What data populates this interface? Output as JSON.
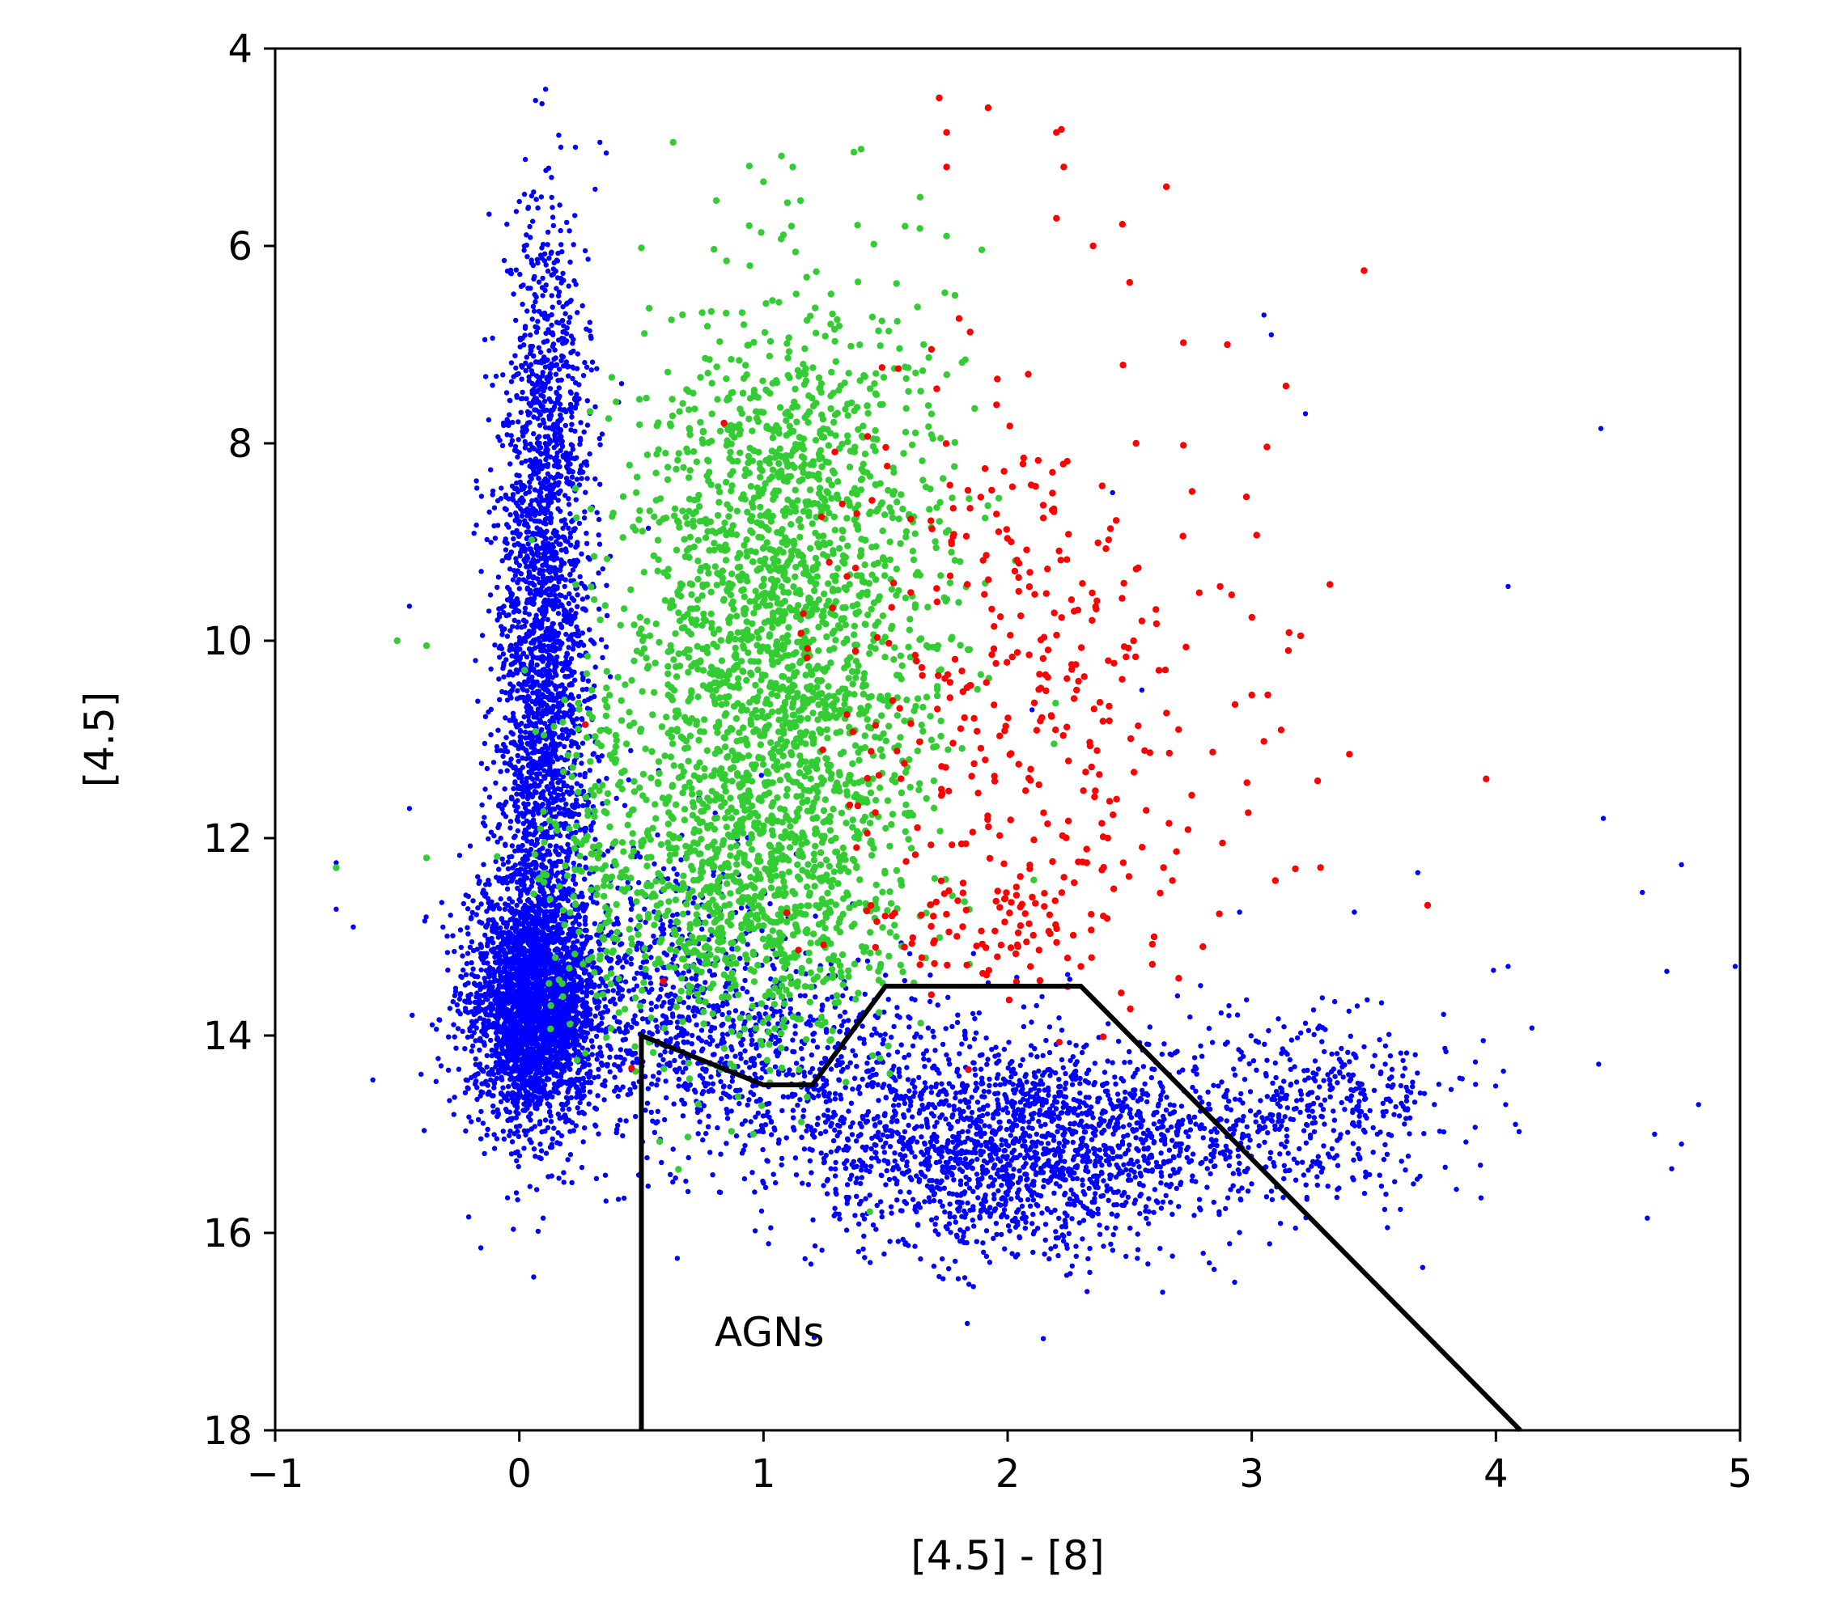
{
  "chart_data": {
    "type": "scatter",
    "title": "",
    "xlabel": "[4.5] - [8]",
    "ylabel": "[4.5]",
    "xlim": [
      -1,
      5
    ],
    "ylim": [
      18,
      4
    ],
    "y_inverted": true,
    "xticks": [
      -1,
      0,
      1,
      2,
      3,
      4,
      5
    ],
    "xtick_labels": [
      "−1",
      "0",
      "1",
      "2",
      "3",
      "4",
      "5"
    ],
    "yticks": [
      4,
      6,
      8,
      10,
      12,
      14,
      16,
      18
    ],
    "ytick_labels": [
      "4",
      "6",
      "8",
      "10",
      "12",
      "14",
      "16",
      "18"
    ],
    "grid": false,
    "legend": "none",
    "series": [
      {
        "color": "#0000ff",
        "clusters": [
          {
            "cx": 0.05,
            "cy": 13.7,
            "sx": 0.13,
            "sy": 0.6,
            "n": 2600
          },
          {
            "cx": 0.1,
            "cy": 10.5,
            "sx": 0.1,
            "sy": 1.8,
            "n": 2200
          },
          {
            "cx": 0.12,
            "cy": 7.5,
            "sx": 0.08,
            "sy": 1.0,
            "n": 400
          },
          {
            "cx": 0.55,
            "cy": 13.6,
            "sx": 0.3,
            "sy": 0.8,
            "n": 700
          },
          {
            "cx": 1.05,
            "cy": 14.3,
            "sx": 0.35,
            "sy": 0.5,
            "n": 500
          },
          {
            "cx": 2.0,
            "cy": 15.1,
            "sx": 0.4,
            "sy": 0.55,
            "n": 1800
          },
          {
            "cx": 3.35,
            "cy": 14.7,
            "sx": 0.25,
            "sy": 0.45,
            "n": 350
          },
          {
            "cx": 2.8,
            "cy": 15.0,
            "sx": 0.25,
            "sy": 0.5,
            "n": 250
          }
        ],
        "points": [
          {
            "x": 0.0,
            "y": 5.55
          },
          {
            "x": 0.17,
            "y": 5.0
          },
          {
            "x": 0.23,
            "y": 5.0
          },
          {
            "x": 0.33,
            "y": 4.95
          },
          {
            "x": 3.05,
            "y": 6.7
          },
          {
            "x": 3.08,
            "y": 6.9
          },
          {
            "x": 3.22,
            "y": 7.7
          },
          {
            "x": 4.43,
            "y": 7.85
          },
          {
            "x": 2.43,
            "y": 8.5
          },
          {
            "x": 4.05,
            "y": 9.45
          },
          {
            "x": 4.44,
            "y": 11.8
          },
          {
            "x": -0.75,
            "y": 12.25
          },
          {
            "x": -0.75,
            "y": 12.72
          },
          {
            "x": -0.68,
            "y": 12.9
          },
          {
            "x": -0.6,
            "y": 14.45
          },
          {
            "x": 3.68,
            "y": 12.35
          },
          {
            "x": 4.76,
            "y": 12.27
          },
          {
            "x": 4.6,
            "y": 12.55
          },
          {
            "x": 3.42,
            "y": 12.75
          },
          {
            "x": 2.95,
            "y": 12.75
          },
          {
            "x": 4.05,
            "y": 13.3
          },
          {
            "x": 4.7,
            "y": 13.35
          },
          {
            "x": 4.98,
            "y": 13.3
          },
          {
            "x": 4.04,
            "y": 14.7
          },
          {
            "x": 4.08,
            "y": 14.9
          },
          {
            "x": 4.83,
            "y": 14.7
          },
          {
            "x": 4.65,
            "y": 15.0
          },
          {
            "x": 4.76,
            "y": 15.1
          },
          {
            "x": 4.72,
            "y": 15.35
          },
          {
            "x": 4.62,
            "y": 15.85
          },
          {
            "x": 3.7,
            "y": 16.35
          },
          {
            "x": 2.93,
            "y": 16.5
          },
          {
            "x": 2.55,
            "y": 10.5
          },
          {
            "x": 2.1,
            "y": 10.7
          },
          {
            "x": -0.45,
            "y": 9.65
          },
          {
            "x": -0.45,
            "y": 11.7
          }
        ]
      },
      {
        "color": "#33cc33",
        "clusters": [
          {
            "cx": 1.05,
            "cy": 10.5,
            "sx": 0.32,
            "sy": 1.6,
            "n": 2000
          },
          {
            "cx": 1.2,
            "cy": 8.3,
            "sx": 0.3,
            "sy": 1.0,
            "n": 400
          },
          {
            "cx": 0.9,
            "cy": 12.8,
            "sx": 0.3,
            "sy": 0.6,
            "n": 450
          },
          {
            "cx": 0.35,
            "cy": 12.0,
            "sx": 0.15,
            "sy": 1.0,
            "n": 150
          }
        ],
        "points": [
          {
            "x": 0.63,
            "y": 4.95
          },
          {
            "x": 1.37,
            "y": 5.05
          },
          {
            "x": 1.4,
            "y": 5.02
          },
          {
            "x": 1.12,
            "y": 5.2
          },
          {
            "x": 1.0,
            "y": 5.35
          },
          {
            "x": 0.5,
            "y": 6.02
          },
          {
            "x": -0.5,
            "y": 10.0
          },
          {
            "x": -0.38,
            "y": 10.05
          },
          {
            "x": -0.75,
            "y": 12.3
          },
          {
            "x": -0.38,
            "y": 12.2
          },
          {
            "x": 1.75,
            "y": 5.9
          },
          {
            "x": 1.58,
            "y": 5.8
          }
        ]
      },
      {
        "color": "#ff0000",
        "clusters": [
          {
            "cx": 2.0,
            "cy": 10.2,
            "sx": 0.35,
            "sy": 1.6,
            "n": 320
          },
          {
            "cx": 1.9,
            "cy": 12.9,
            "sx": 0.25,
            "sy": 0.35,
            "n": 70
          },
          {
            "cx": 2.6,
            "cy": 12.0,
            "sx": 0.4,
            "sy": 1.2,
            "n": 40
          }
        ],
        "points": [
          {
            "x": 1.72,
            "y": 4.5
          },
          {
            "x": 1.92,
            "y": 4.6
          },
          {
            "x": 1.75,
            "y": 4.85
          },
          {
            "x": 2.2,
            "y": 4.85
          },
          {
            "x": 2.22,
            "y": 4.82
          },
          {
            "x": 1.75,
            "y": 5.2
          },
          {
            "x": 2.23,
            "y": 5.2
          },
          {
            "x": 2.65,
            "y": 5.4
          },
          {
            "x": 2.2,
            "y": 5.72
          },
          {
            "x": 2.47,
            "y": 5.78
          },
          {
            "x": 3.46,
            "y": 6.25
          },
          {
            "x": 2.5,
            "y": 6.37
          },
          {
            "x": 2.72,
            "y": 6.98
          },
          {
            "x": 2.9,
            "y": 7.0
          },
          {
            "x": 3.14,
            "y": 7.42
          },
          {
            "x": 2.72,
            "y": 8.02
          },
          {
            "x": 2.35,
            "y": 6.0
          },
          {
            "x": 3.02,
            "y": 8.93
          },
          {
            "x": 3.32,
            "y": 9.43
          },
          {
            "x": 2.87,
            "y": 9.45
          },
          {
            "x": 3.2,
            "y": 9.95
          },
          {
            "x": 3.15,
            "y": 10.1
          },
          {
            "x": 3.0,
            "y": 10.55
          },
          {
            "x": 3.05,
            "y": 11.02
          },
          {
            "x": 3.4,
            "y": 11.15
          },
          {
            "x": 3.27,
            "y": 11.42
          },
          {
            "x": 3.96,
            "y": 11.4
          },
          {
            "x": 3.72,
            "y": 12.68
          },
          {
            "x": 2.55,
            "y": 9.8
          },
          {
            "x": 2.62,
            "y": 10.3
          },
          {
            "x": 2.7,
            "y": 10.9
          },
          {
            "x": 2.88,
            "y": 12.05
          },
          {
            "x": 2.6,
            "y": 13.0
          },
          {
            "x": 2.8,
            "y": 13.1
          },
          {
            "x": 2.3,
            "y": 13.3
          },
          {
            "x": 0.46,
            "y": 14.33
          },
          {
            "x": 0.59,
            "y": 13.45
          },
          {
            "x": 0.27,
            "y": 10.85
          }
        ]
      }
    ],
    "boundary_line": {
      "color": "#000000",
      "x": [
        0.5,
        0.5,
        1.0,
        1.2,
        1.5,
        2.3,
        4.1
      ],
      "y": [
        18,
        14.0,
        14.5,
        14.5,
        13.5,
        13.5,
        18
      ]
    },
    "annotations": [
      {
        "text": "AGNs",
        "x": 0.8,
        "y": 17.0
      }
    ]
  }
}
